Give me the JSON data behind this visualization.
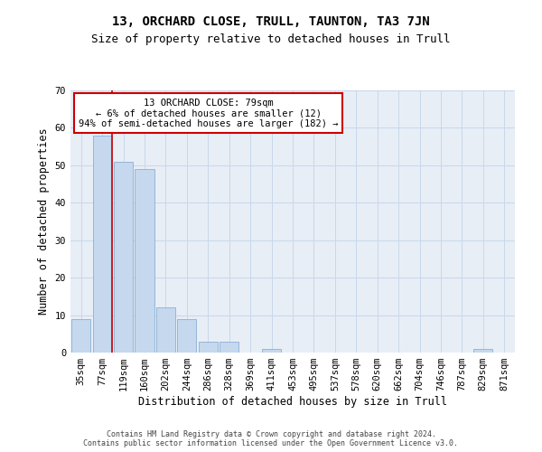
{
  "title1": "13, ORCHARD CLOSE, TRULL, TAUNTON, TA3 7JN",
  "title2": "Size of property relative to detached houses in Trull",
  "xlabel": "Distribution of detached houses by size in Trull",
  "ylabel": "Number of detached properties",
  "footer1": "Contains HM Land Registry data © Crown copyright and database right 2024.",
  "footer2": "Contains public sector information licensed under the Open Government Licence v3.0.",
  "categories": [
    "35sqm",
    "77sqm",
    "119sqm",
    "160sqm",
    "202sqm",
    "244sqm",
    "286sqm",
    "328sqm",
    "369sqm",
    "411sqm",
    "453sqm",
    "495sqm",
    "537sqm",
    "578sqm",
    "620sqm",
    "662sqm",
    "704sqm",
    "746sqm",
    "787sqm",
    "829sqm",
    "871sqm"
  ],
  "values": [
    9,
    58,
    51,
    49,
    12,
    9,
    3,
    3,
    0,
    1,
    0,
    0,
    0,
    0,
    0,
    0,
    0,
    0,
    0,
    1,
    0
  ],
  "bar_color": "#c5d8ed",
  "bar_edgecolor": "#8ab0d4",
  "vline_index": 1.5,
  "annotation_text": "13 ORCHARD CLOSE: 79sqm\n← 6% of detached houses are smaller (12)\n94% of semi-detached houses are larger (182) →",
  "annotation_box_facecolor": "#ffffff",
  "annotation_box_edgecolor": "#cc0000",
  "vline_color": "#cc0000",
  "ylim": [
    0,
    70
  ],
  "yticks": [
    0,
    10,
    20,
    30,
    40,
    50,
    60,
    70
  ],
  "grid_color": "#c8d8ea",
  "background_color": "#e8eef6",
  "title1_fontsize": 10,
  "title2_fontsize": 9,
  "xlabel_fontsize": 8.5,
  "ylabel_fontsize": 8.5,
  "annotation_fontsize": 7.5,
  "tick_fontsize": 7.5,
  "footer_fontsize": 6.0
}
